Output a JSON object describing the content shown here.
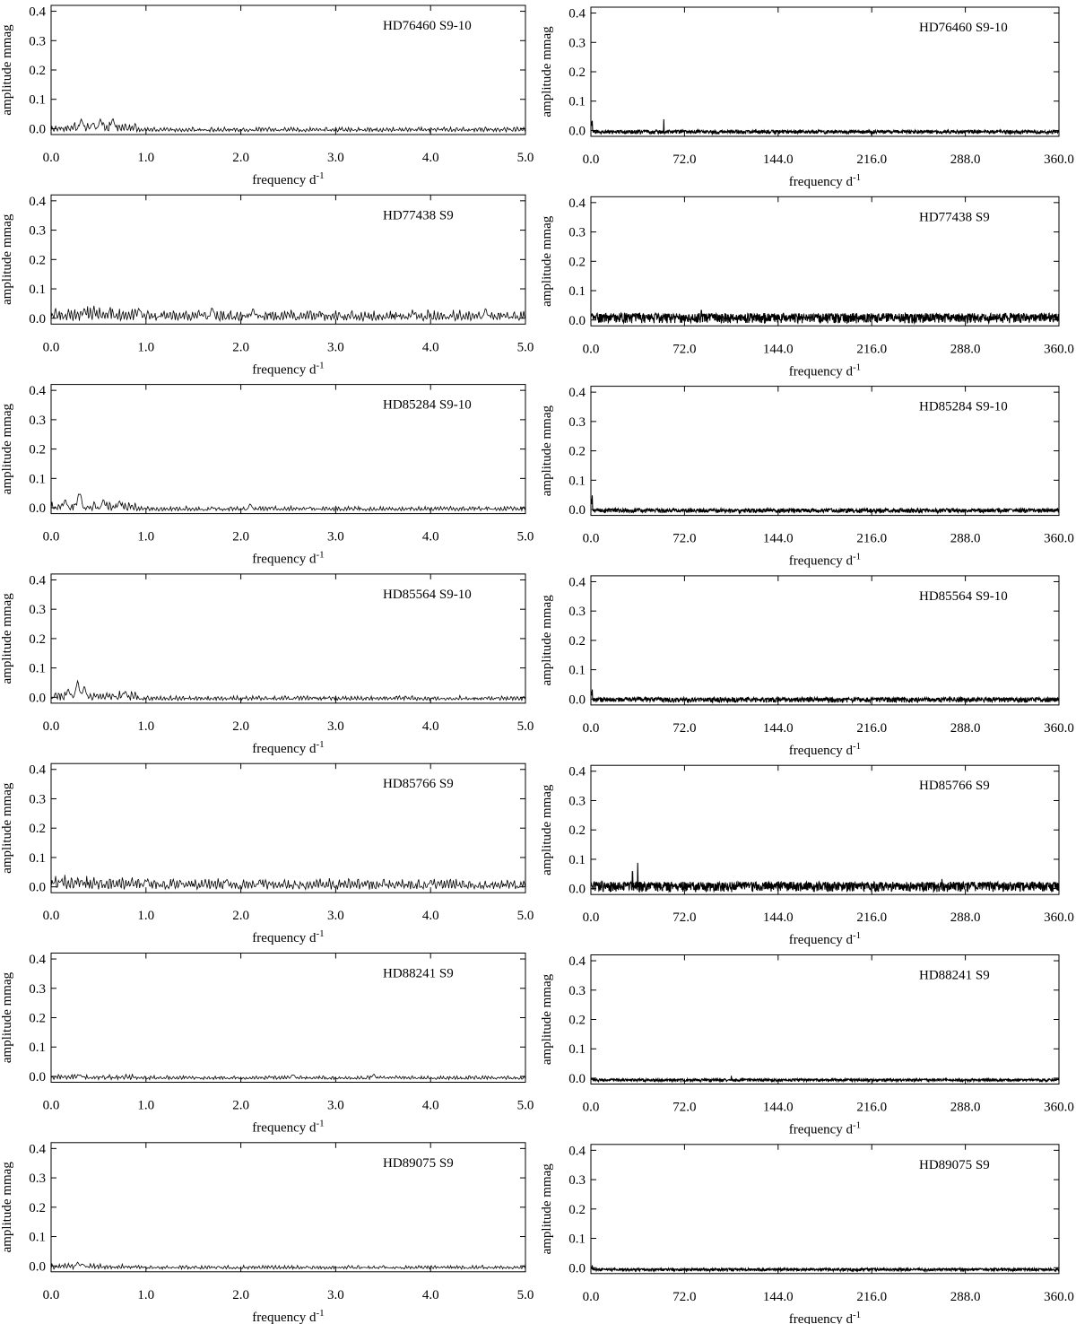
{
  "chart_data": [
    {
      "type": "line",
      "title": "HD76460 S9-10",
      "xlabel": "frequency d",
      "xlabel_sup": "-1",
      "ylabel": "amplitude mmag",
      "xlim": [
        0,
        5
      ],
      "ylim": [
        -0.02,
        0.42
      ],
      "xticks": [
        "0.0",
        "1.0",
        "2.0",
        "3.0",
        "4.0",
        "5.0"
      ],
      "yticks": [
        "0.0",
        "0.1",
        "0.2",
        "0.3",
        "0.4"
      ],
      "noise_level": 0.012,
      "peaks": [
        {
          "x": 0.32,
          "y": 0.045
        },
        {
          "x": 0.52,
          "y": 0.045
        },
        {
          "x": 0.65,
          "y": 0.048
        },
        {
          "x": 0.44,
          "y": 0.035
        }
      ],
      "low_freq_amp": 0.035
    },
    {
      "type": "line",
      "title": "HD76460 S9-10",
      "xlabel": "frequency d",
      "xlabel_sup": "-1",
      "ylabel": "amplitude mmag",
      "xlim": [
        0,
        360
      ],
      "ylim": [
        -0.02,
        0.42
      ],
      "xticks": [
        "0.0",
        "72.0",
        "144.0",
        "216.0",
        "288.0",
        "360.0"
      ],
      "yticks": [
        "0.0",
        "0.1",
        "0.2",
        "0.3",
        "0.4"
      ],
      "noise_level": 0.012,
      "peaks": [
        {
          "x": 1,
          "y": 0.045
        },
        {
          "x": 56,
          "y": 0.05
        }
      ],
      "low_freq_amp": 0.045
    },
    {
      "type": "line",
      "title": "HD77438 S9",
      "xlabel": "frequency d",
      "xlabel_sup": "-1",
      "ylabel": "amplitude mmag",
      "xlim": [
        0,
        5
      ],
      "ylim": [
        -0.02,
        0.42
      ],
      "xticks": [
        "0.0",
        "1.0",
        "2.0",
        "3.0",
        "4.0",
        "5.0"
      ],
      "yticks": [
        "0.0",
        "0.1",
        "0.2",
        "0.3",
        "0.4"
      ],
      "noise_level": 0.028,
      "peaks": [
        {
          "x": 0.35,
          "y": 0.045
        },
        {
          "x": 0.93,
          "y": 0.05
        },
        {
          "x": 1.7,
          "y": 0.05
        },
        {
          "x": 2.13,
          "y": 0.045
        },
        {
          "x": 4.58,
          "y": 0.045
        }
      ],
      "low_freq_amp": 0.03
    },
    {
      "type": "line",
      "title": "HD77438 S9",
      "xlabel": "frequency d",
      "xlabel_sup": "-1",
      "ylabel": "amplitude mmag",
      "xlim": [
        0,
        360
      ],
      "ylim": [
        -0.02,
        0.42
      ],
      "xticks": [
        "0.0",
        "72.0",
        "144.0",
        "216.0",
        "288.0",
        "360.0"
      ],
      "yticks": [
        "0.0",
        "0.1",
        "0.2",
        "0.3",
        "0.4"
      ],
      "noise_level": 0.032,
      "peaks": [
        {
          "x": 85,
          "y": 0.045
        }
      ],
      "low_freq_amp": 0.035
    },
    {
      "type": "line",
      "title": "HD85284 S9-10",
      "xlabel": "frequency d",
      "xlabel_sup": "-1",
      "ylabel": "amplitude mmag",
      "xlim": [
        0,
        5
      ],
      "ylim": [
        -0.02,
        0.42
      ],
      "xticks": [
        "0.0",
        "1.0",
        "2.0",
        "3.0",
        "4.0",
        "5.0"
      ],
      "yticks": [
        "0.0",
        "0.1",
        "0.2",
        "0.3",
        "0.4"
      ],
      "noise_level": 0.012,
      "peaks": [
        {
          "x": 0.3,
          "y": 0.07
        },
        {
          "x": 0.15,
          "y": 0.04
        },
        {
          "x": 0.55,
          "y": 0.04
        },
        {
          "x": 0.72,
          "y": 0.035
        },
        {
          "x": 2.1,
          "y": 0.025
        }
      ],
      "low_freq_amp": 0.04
    },
    {
      "type": "line",
      "title": "HD85284 S9-10",
      "xlabel": "frequency d",
      "xlabel_sup": "-1",
      "ylabel": "amplitude mmag",
      "xlim": [
        0,
        360
      ],
      "ylim": [
        -0.02,
        0.42
      ],
      "xticks": [
        "0.0",
        "72.0",
        "144.0",
        "216.0",
        "288.0",
        "360.0"
      ],
      "yticks": [
        "0.0",
        "0.1",
        "0.2",
        "0.3",
        "0.4"
      ],
      "noise_level": 0.014,
      "peaks": [
        {
          "x": 1,
          "y": 0.06
        }
      ],
      "low_freq_amp": 0.05
    },
    {
      "type": "line",
      "title": "HD85564 S9-10",
      "xlabel": "frequency d",
      "xlabel_sup": "-1",
      "ylabel": "amplitude mmag",
      "xlim": [
        0,
        5
      ],
      "ylim": [
        -0.02,
        0.42
      ],
      "xticks": [
        "0.0",
        "1.0",
        "2.0",
        "3.0",
        "4.0",
        "5.0"
      ],
      "yticks": [
        "0.0",
        "0.1",
        "0.2",
        "0.3",
        "0.4"
      ],
      "noise_level": 0.012,
      "peaks": [
        {
          "x": 0.28,
          "y": 0.07
        },
        {
          "x": 0.35,
          "y": 0.05
        },
        {
          "x": 0.18,
          "y": 0.04
        },
        {
          "x": 0.78,
          "y": 0.035
        }
      ],
      "low_freq_amp": 0.04
    },
    {
      "type": "line",
      "title": "HD85564 S9-10",
      "xlabel": "frequency d",
      "xlabel_sup": "-1",
      "ylabel": "amplitude mmag",
      "xlim": [
        0,
        360
      ],
      "ylim": [
        -0.02,
        0.42
      ],
      "xticks": [
        "0.0",
        "72.0",
        "144.0",
        "216.0",
        "288.0",
        "360.0"
      ],
      "yticks": [
        "0.0",
        "0.1",
        "0.2",
        "0.3",
        "0.4"
      ],
      "noise_level": 0.016,
      "peaks": [
        {
          "x": 1,
          "y": 0.045
        }
      ],
      "low_freq_amp": 0.04
    },
    {
      "type": "line",
      "title": "HD85766 S9",
      "xlabel": "frequency d",
      "xlabel_sup": "-1",
      "ylabel": "amplitude mmag",
      "xlim": [
        0,
        5
      ],
      "ylim": [
        -0.02,
        0.42
      ],
      "xticks": [
        "0.0",
        "1.0",
        "2.0",
        "3.0",
        "4.0",
        "5.0"
      ],
      "yticks": [
        "0.0",
        "0.1",
        "0.2",
        "0.3",
        "0.4"
      ],
      "noise_level": 0.028,
      "peaks": [
        {
          "x": 0.1,
          "y": 0.035
        },
        {
          "x": 1.0,
          "y": 0.04
        },
        {
          "x": 1.85,
          "y": 0.04
        },
        {
          "x": 2.2,
          "y": 0.035
        },
        {
          "x": 4.0,
          "y": 0.035
        }
      ],
      "low_freq_amp": 0.03
    },
    {
      "type": "line",
      "title": "HD85766 S9",
      "xlabel": "frequency d",
      "xlabel_sup": "-1",
      "ylabel": "amplitude mmag",
      "xlim": [
        0,
        360
      ],
      "ylim": [
        -0.02,
        0.42
      ],
      "xticks": [
        "0.0",
        "72.0",
        "144.0",
        "216.0",
        "288.0",
        "360.0"
      ],
      "yticks": [
        "0.0",
        "0.1",
        "0.2",
        "0.3",
        "0.4"
      ],
      "noise_level": 0.032,
      "peaks": [
        {
          "x": 32,
          "y": 0.07
        },
        {
          "x": 36,
          "y": 0.1
        },
        {
          "x": 270,
          "y": 0.045
        }
      ],
      "low_freq_amp": 0.035
    },
    {
      "type": "line",
      "title": "HD88241 S9",
      "xlabel": "frequency d",
      "xlabel_sup": "-1",
      "ylabel": "amplitude mmag",
      "xlim": [
        0,
        5
      ],
      "ylim": [
        -0.02,
        0.42
      ],
      "xticks": [
        "0.0",
        "1.0",
        "2.0",
        "3.0",
        "4.0",
        "5.0"
      ],
      "yticks": [
        "0.0",
        "0.1",
        "0.2",
        "0.3",
        "0.4"
      ],
      "noise_level": 0.01,
      "peaks": [
        {
          "x": 0.3,
          "y": 0.02
        },
        {
          "x": 2.55,
          "y": 0.02
        },
        {
          "x": 3.4,
          "y": 0.02
        }
      ],
      "low_freq_amp": 0.012
    },
    {
      "type": "line",
      "title": "HD88241 S9",
      "xlabel": "frequency d",
      "xlabel_sup": "-1",
      "ylabel": "amplitude mmag",
      "xlim": [
        0,
        360
      ],
      "ylim": [
        -0.02,
        0.42
      ],
      "xticks": [
        "0.0",
        "72.0",
        "144.0",
        "216.0",
        "288.0",
        "360.0"
      ],
      "yticks": [
        "0.0",
        "0.1",
        "0.2",
        "0.3",
        "0.4"
      ],
      "noise_level": 0.009,
      "peaks": [
        {
          "x": 108,
          "y": 0.02
        }
      ],
      "low_freq_amp": 0.01
    },
    {
      "type": "line",
      "title": "HD89075 S9",
      "xlabel": "frequency d",
      "xlabel_sup": "-1",
      "ylabel": "amplitude mmag",
      "xlim": [
        0,
        5
      ],
      "ylim": [
        -0.02,
        0.42
      ],
      "xticks": [
        "0.0",
        "1.0",
        "2.0",
        "3.0",
        "4.0",
        "5.0"
      ],
      "yticks": [
        "0.0",
        "0.1",
        "0.2",
        "0.3",
        "0.4"
      ],
      "noise_level": 0.01,
      "peaks": [
        {
          "x": 0.28,
          "y": 0.025
        },
        {
          "x": 0.33,
          "y": 0.02
        }
      ],
      "low_freq_amp": 0.015
    },
    {
      "type": "line",
      "title": "HD89075 S9",
      "xlabel": "frequency d",
      "xlabel_sup": "-1",
      "ylabel": "amplitude mmag",
      "xlim": [
        0,
        360
      ],
      "ylim": [
        -0.02,
        0.42
      ],
      "xticks": [
        "0.0",
        "72.0",
        "144.0",
        "216.0",
        "288.0",
        "360.0"
      ],
      "yticks": [
        "0.0",
        "0.1",
        "0.2",
        "0.3",
        "0.4"
      ],
      "noise_level": 0.009,
      "peaks": [
        {
          "x": 1,
          "y": 0.02
        }
      ],
      "low_freq_amp": 0.015
    }
  ]
}
